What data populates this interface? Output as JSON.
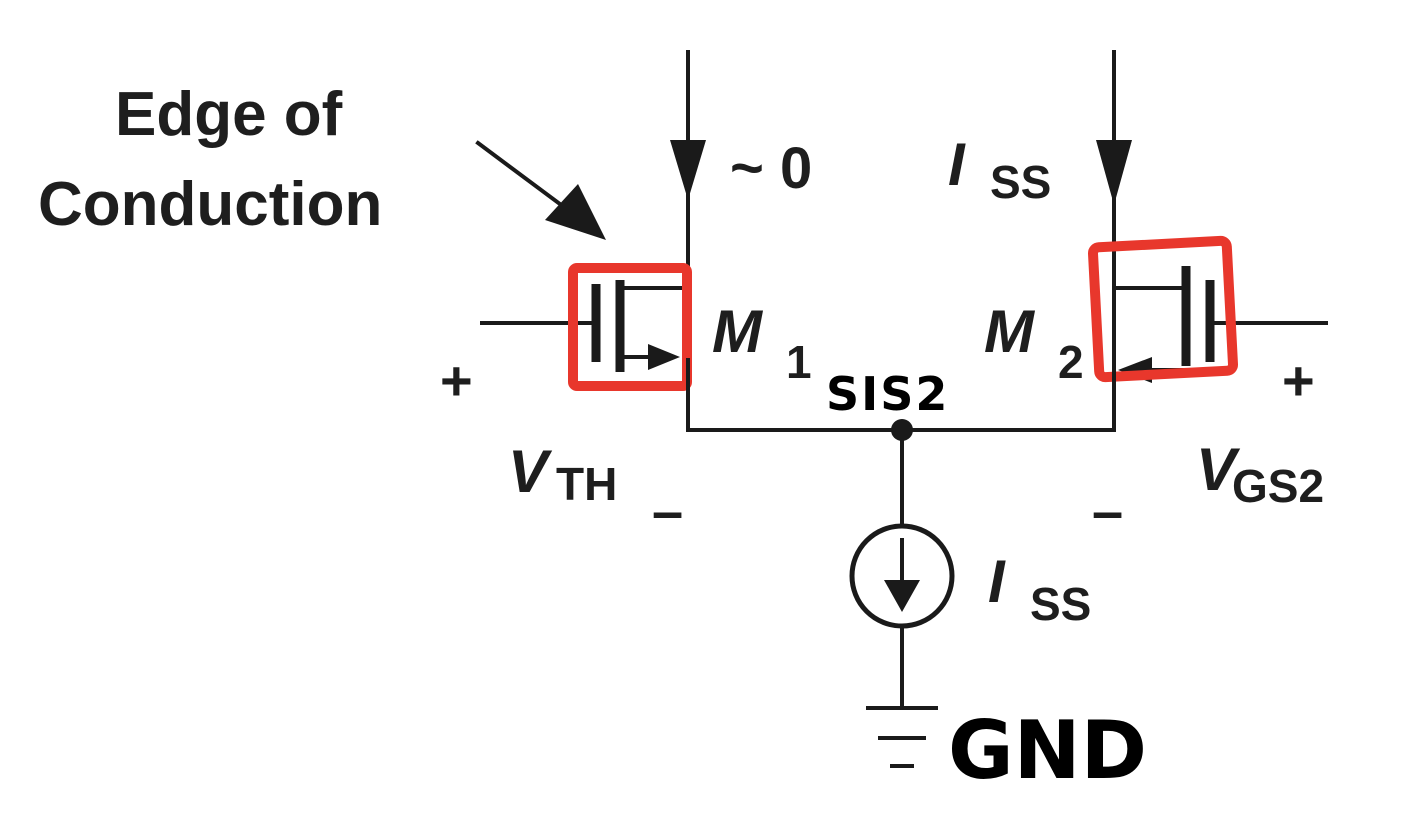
{
  "labels": {
    "annotation_line1": "Edge of",
    "annotation_line2": "Conduction",
    "m1_current": "~ 0",
    "m2_current_main": "I",
    "m2_current_sub": "SS",
    "m1_name_main": "M",
    "m1_name_sub": "1",
    "m2_name_main": "M",
    "m2_name_sub": "2",
    "source_node": "SIS2",
    "vth_main": "V",
    "vth_sub": "TH",
    "vgs2_main": "V",
    "vgs2_sub": "GS2",
    "plus": "+",
    "minus": "–",
    "tail_current_main": "I",
    "tail_current_sub": "SS",
    "ground": "GND"
  },
  "colors": {
    "highlight": "#e8372c",
    "ink": "#1a1a1a"
  },
  "icons": {
    "ground": "ground-symbol-icon",
    "current_source": "current-source-icon"
  }
}
